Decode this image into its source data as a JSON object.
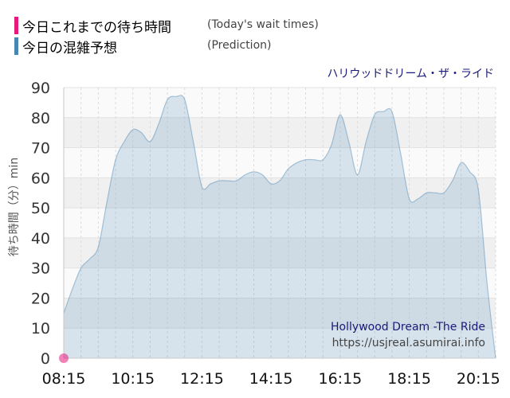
{
  "legend": [
    {
      "label": "今日これまでの待ち時間",
      "sub": "(Today's wait times)",
      "color": "#e8197d"
    },
    {
      "label": "今日の混雑予想",
      "sub": "(Prediction)",
      "color": "#4a86b4"
    }
  ],
  "ride_name_jp": "ハリウッドドリーム・ザ・ライド",
  "ride_name_en": "Hollywood Dream -The Ride",
  "site_url": "https://usjreal.asumirai.info",
  "chart_data": {
    "type": "area",
    "ylabel": "待ち時間（分）min",
    "ylim": [
      0,
      90
    ],
    "yticks": [
      0,
      10,
      20,
      30,
      40,
      50,
      60,
      70,
      80,
      90
    ],
    "xlim": [
      "08:15",
      "20:45"
    ],
    "xticks": [
      "08:15",
      "10:15",
      "12:15",
      "14:15",
      "16:15",
      "18:15",
      "20:15"
    ],
    "grid": true,
    "series": [
      {
        "name": "今日の混雑予想",
        "color": "#4a86b4",
        "x": [
          "08:15",
          "08:30",
          "08:45",
          "09:00",
          "09:15",
          "09:30",
          "09:45",
          "10:00",
          "10:15",
          "10:30",
          "10:45",
          "11:00",
          "11:15",
          "11:30",
          "11:45",
          "12:00",
          "12:15",
          "12:30",
          "12:45",
          "13:00",
          "13:15",
          "13:30",
          "13:45",
          "14:00",
          "14:15",
          "14:30",
          "14:45",
          "15:00",
          "15:15",
          "15:30",
          "15:45",
          "16:00",
          "16:15",
          "16:30",
          "16:45",
          "17:00",
          "17:15",
          "17:30",
          "17:45",
          "18:00",
          "18:15",
          "18:30",
          "18:45",
          "19:00",
          "19:15",
          "19:30",
          "19:45",
          "20:00",
          "20:15",
          "20:30",
          "20:45"
        ],
        "values": [
          15,
          23,
          30,
          33,
          37,
          52,
          66,
          72,
          76,
          75,
          72,
          78,
          86,
          87,
          86,
          72,
          57,
          58,
          59,
          59,
          59,
          61,
          62,
          61,
          58,
          59,
          63,
          65,
          66,
          66,
          66,
          71,
          81,
          72,
          61,
          72,
          81,
          82,
          82,
          68,
          53,
          53,
          55,
          55,
          55,
          59,
          65,
          62,
          56,
          25,
          0
        ]
      },
      {
        "name": "今日これまでの待ち時間",
        "color": "#e8197d",
        "x": [
          "08:15"
        ],
        "values": [
          0
        ]
      }
    ]
  }
}
